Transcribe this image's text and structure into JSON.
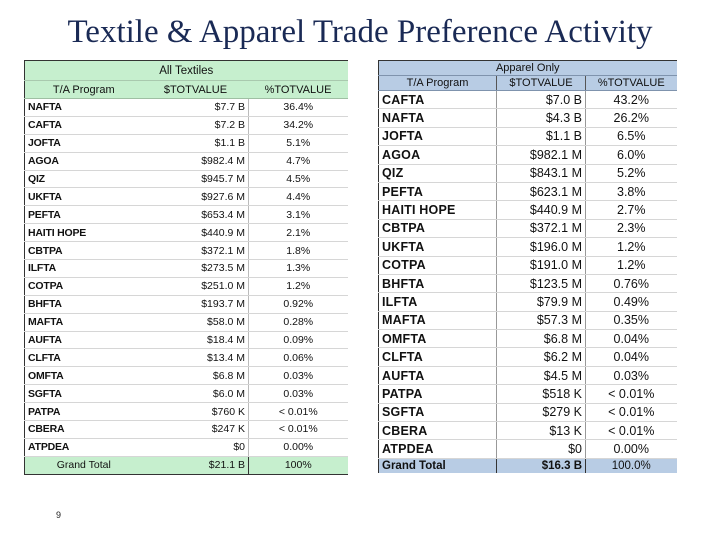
{
  "slide": {
    "title": "Textile & Apparel Trade Preference Activity",
    "page_number": "9"
  },
  "colors": {
    "title": "#1a2a55",
    "textiles_header_bg": "#c6efce",
    "apparel_header_bg": "#b8cce4"
  },
  "textiles": {
    "caption": "All Textiles",
    "headers": [
      "T/A Program",
      "$TOTVALUE",
      "%TOTVALUE"
    ],
    "rows": [
      {
        "program": "NAFTA",
        "value": "$7.7 B",
        "pct": "36.4%"
      },
      {
        "program": "CAFTA",
        "value": "$7.2 B",
        "pct": "34.2%"
      },
      {
        "program": "JOFTA",
        "value": "$1.1 B",
        "pct": "5.1%"
      },
      {
        "program": "AGOA",
        "value": "$982.4 M",
        "pct": "4.7%"
      },
      {
        "program": "QIZ",
        "value": "$945.7 M",
        "pct": "4.5%"
      },
      {
        "program": "UKFTA",
        "value": "$927.6 M",
        "pct": "4.4%"
      },
      {
        "program": "PEFTA",
        "value": "$653.4 M",
        "pct": "3.1%"
      },
      {
        "program": "HAITI HOPE",
        "value": "$440.9 M",
        "pct": "2.1%"
      },
      {
        "program": "CBTPA",
        "value": "$372.1 M",
        "pct": "1.8%"
      },
      {
        "program": "ILFTA",
        "value": "$273.5 M",
        "pct": "1.3%"
      },
      {
        "program": "COTPA",
        "value": "$251.0 M",
        "pct": "1.2%"
      },
      {
        "program": "BHFTA",
        "value": "$193.7 M",
        "pct": "0.92%"
      },
      {
        "program": "MAFTA",
        "value": "$58.0 M",
        "pct": "0.28%"
      },
      {
        "program": "AUFTA",
        "value": "$18.4 M",
        "pct": "0.09%"
      },
      {
        "program": "CLFTA",
        "value": "$13.4 M",
        "pct": "0.06%"
      },
      {
        "program": "OMFTA",
        "value": "$6.8 M",
        "pct": "0.03%"
      },
      {
        "program": "SGFTA",
        "value": "$6.0 M",
        "pct": "0.03%"
      },
      {
        "program": "PATPA",
        "value": "$760 K",
        "pct": "< 0.01%"
      },
      {
        "program": "CBERA",
        "value": "$247 K",
        "pct": "< 0.01%"
      },
      {
        "program": "ATPDEA",
        "value": "$0",
        "pct": "0.00%"
      }
    ],
    "total": {
      "label": "Grand Total",
      "value": "$21.1 B",
      "pct": "100%"
    }
  },
  "apparel": {
    "caption": "Apparel Only",
    "headers": [
      "T/A Program",
      "$TOTVALUE",
      "%TOTVALUE"
    ],
    "rows": [
      {
        "program": "CAFTA",
        "value": "$7.0 B",
        "pct": "43.2%"
      },
      {
        "program": "NAFTA",
        "value": "$4.3 B",
        "pct": "26.2%"
      },
      {
        "program": "JOFTA",
        "value": "$1.1 B",
        "pct": "6.5%"
      },
      {
        "program": "AGOA",
        "value": "$982.1 M",
        "pct": "6.0%"
      },
      {
        "program": "QIZ",
        "value": "$843.1 M",
        "pct": "5.2%"
      },
      {
        "program": "PEFTA",
        "value": "$623.1 M",
        "pct": "3.8%"
      },
      {
        "program": "HAITI HOPE",
        "value": "$440.9 M",
        "pct": "2.7%"
      },
      {
        "program": "CBTPA",
        "value": "$372.1 M",
        "pct": "2.3%"
      },
      {
        "program": "UKFTA",
        "value": "$196.0 M",
        "pct": "1.2%"
      },
      {
        "program": "COTPA",
        "value": "$191.0 M",
        "pct": "1.2%"
      },
      {
        "program": "BHFTA",
        "value": "$123.5 M",
        "pct": "0.76%"
      },
      {
        "program": "ILFTA",
        "value": "$79.9 M",
        "pct": "0.49%"
      },
      {
        "program": "MAFTA",
        "value": "$57.3 M",
        "pct": "0.35%"
      },
      {
        "program": "OMFTA",
        "value": "$6.8 M",
        "pct": "0.04%"
      },
      {
        "program": "CLFTA",
        "value": "$6.2 M",
        "pct": "0.04%"
      },
      {
        "program": "AUFTA",
        "value": "$4.5 M",
        "pct": "0.03%"
      },
      {
        "program": "PATPA",
        "value": "$518 K",
        "pct": "< 0.01%"
      },
      {
        "program": "SGFTA",
        "value": "$279 K",
        "pct": "< 0.01%"
      },
      {
        "program": "CBERA",
        "value": "$13 K",
        "pct": "< 0.01%"
      },
      {
        "program": "ATPDEA",
        "value": "$0",
        "pct": "0.00%"
      }
    ],
    "total": {
      "label": "Grand Total",
      "value": "$16.3 B",
      "pct": "100.0%"
    }
  }
}
